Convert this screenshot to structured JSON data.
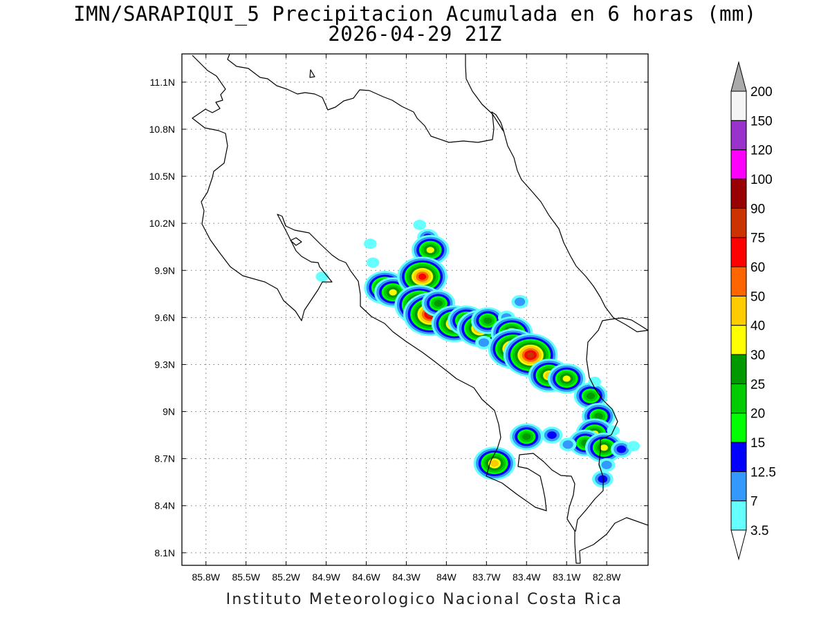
{
  "title": {
    "line1": "IMN/SARAPIQUI_5 Precipitacion Acumulada en 6 horas (mm)",
    "line2": "2026-04-29 21Z"
  },
  "footer": "Instituto Meteorologico Nacional Costa Rica",
  "map": {
    "lon_range": [
      -85.98,
      -82.49
    ],
    "lat_range": [
      8.02,
      11.28
    ],
    "lon_ticks": [
      {
        "value": -85.8,
        "label": "85.8W"
      },
      {
        "value": -85.5,
        "label": "85.5W"
      },
      {
        "value": -85.2,
        "label": "85.2W"
      },
      {
        "value": -84.9,
        "label": "84.9W"
      },
      {
        "value": -84.6,
        "label": "84.6W"
      },
      {
        "value": -84.3,
        "label": "84.3W"
      },
      {
        "value": -84.0,
        "label": "84W"
      },
      {
        "value": -83.7,
        "label": "83.7W"
      },
      {
        "value": -83.4,
        "label": "83.4W"
      },
      {
        "value": -83.1,
        "label": "83.1W"
      },
      {
        "value": -82.8,
        "label": "82.8W"
      }
    ],
    "lat_ticks": [
      {
        "value": 8.1,
        "label": "8.1N"
      },
      {
        "value": 8.4,
        "label": "8.4N"
      },
      {
        "value": 8.7,
        "label": "8.7N"
      },
      {
        "value": 9.0,
        "label": "9N"
      },
      {
        "value": 9.3,
        "label": "9.3N"
      },
      {
        "value": 9.6,
        "label": "9.6N"
      },
      {
        "value": 9.9,
        "label": "9.9N"
      },
      {
        "value": 10.2,
        "label": "10.2N"
      },
      {
        "value": 10.5,
        "label": "10.5N"
      },
      {
        "value": 10.8,
        "label": "10.8N"
      },
      {
        "value": 11.1,
        "label": "11.1N"
      }
    ],
    "grid": "dotted",
    "borders_color": "#000000"
  },
  "colorbar": {
    "labels": [
      "3.5",
      "7",
      "12.5",
      "15",
      "20",
      "25",
      "30",
      "40",
      "50",
      "60",
      "75",
      "90",
      "100",
      "120",
      "150",
      "200"
    ],
    "colors": [
      "#66ffff",
      "#3399ff",
      "#0000ff",
      "#00ff00",
      "#00cc00",
      "#009900",
      "#ffff00",
      "#ffcc00",
      "#ff6600",
      "#ff0000",
      "#cc3300",
      "#990000",
      "#ff00ff",
      "#9933cc",
      "#f5f5f5"
    ],
    "over_color": "#aaaaaa",
    "under_color": "#ffffff"
  },
  "precip_cells": [
    {
      "lon": -84.14,
      "lat": 10.11,
      "peak": "12.5"
    },
    {
      "lon": -84.12,
      "lat": 10.03,
      "peak": "30"
    },
    {
      "lon": -84.57,
      "lat": 10.07,
      "peak": "3.5"
    },
    {
      "lon": -84.2,
      "lat": 10.19,
      "peak": "3.5"
    },
    {
      "lon": -84.55,
      "lat": 9.95,
      "peak": "3.5"
    },
    {
      "lon": -84.46,
      "lat": 9.79,
      "peak": "40"
    },
    {
      "lon": -84.4,
      "lat": 9.76,
      "peak": "30"
    },
    {
      "lon": -84.93,
      "lat": 9.86,
      "peak": "3.5"
    },
    {
      "lon": -84.18,
      "lat": 9.86,
      "peak": "60"
    },
    {
      "lon": -84.2,
      "lat": 9.68,
      "peak": "60"
    },
    {
      "lon": -84.12,
      "lat": 9.62,
      "peak": "75"
    },
    {
      "lon": -84.06,
      "lat": 9.69,
      "peak": "25"
    },
    {
      "lon": -83.94,
      "lat": 9.56,
      "peak": "50"
    },
    {
      "lon": -83.85,
      "lat": 9.58,
      "peak": "30"
    },
    {
      "lon": -83.75,
      "lat": 9.53,
      "peak": "50"
    },
    {
      "lon": -83.69,
      "lat": 9.58,
      "peak": "25"
    },
    {
      "lon": -83.72,
      "lat": 9.44,
      "peak": "7"
    },
    {
      "lon": -83.55,
      "lat": 9.6,
      "peak": "7"
    },
    {
      "lon": -83.45,
      "lat": 9.7,
      "peak": "7"
    },
    {
      "lon": -83.51,
      "lat": 9.5,
      "peak": "40"
    },
    {
      "lon": -83.5,
      "lat": 9.4,
      "peak": "60"
    },
    {
      "lon": -83.37,
      "lat": 9.36,
      "peak": "75"
    },
    {
      "lon": -83.23,
      "lat": 9.23,
      "peak": "40"
    },
    {
      "lon": -83.1,
      "lat": 9.21,
      "peak": "30"
    },
    {
      "lon": -82.92,
      "lat": 9.1,
      "peak": "25"
    },
    {
      "lon": -82.89,
      "lat": 9.19,
      "peak": "3.5"
    },
    {
      "lon": -82.86,
      "lat": 8.97,
      "peak": "25"
    },
    {
      "lon": -82.89,
      "lat": 8.86,
      "peak": "30"
    },
    {
      "lon": -82.96,
      "lat": 8.8,
      "peak": "25"
    },
    {
      "lon": -82.82,
      "lat": 8.77,
      "peak": "30"
    },
    {
      "lon": -82.69,
      "lat": 8.76,
      "peak": "12.5"
    },
    {
      "lon": -82.8,
      "lat": 8.66,
      "peak": "7"
    },
    {
      "lon": -82.83,
      "lat": 8.57,
      "peak": "12.5"
    },
    {
      "lon": -83.4,
      "lat": 8.84,
      "peak": "25"
    },
    {
      "lon": -83.21,
      "lat": 8.85,
      "peak": "12.5"
    },
    {
      "lon": -83.09,
      "lat": 8.79,
      "peak": "7"
    },
    {
      "lon": -83.64,
      "lat": 8.67,
      "peak": "40"
    },
    {
      "lon": -82.75,
      "lat": 8.88,
      "peak": "3.5"
    },
    {
      "lon": -82.6,
      "lat": 8.78,
      "peak": "3.5"
    }
  ]
}
